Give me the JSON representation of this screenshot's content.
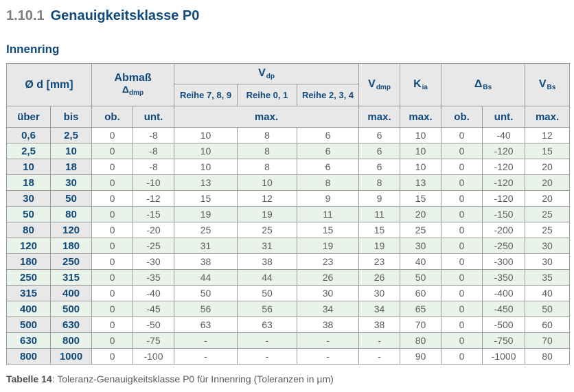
{
  "page": {
    "section_number": "1.10.1",
    "section_title": "Genauigkeitsklasse P0",
    "subtitle": "Innenring",
    "caption_label": "Tabelle 14",
    "caption_rest": ": Toleranz-Genauigkeitsklasse P0 für Innenring (Toleranzen in µm)"
  },
  "colors": {
    "accent_blue": "#10497c",
    "section_number_gray": "#7f7f7f",
    "header_bg": "#e8e8e8",
    "row_alt_green": "#eaf3ea",
    "border_gray": "#9b9b9b",
    "value_text_gray": "#5c5c5c"
  },
  "table": {
    "header": {
      "col_d": "Ø d  [mm]",
      "col_abmass": {
        "line1": "Abmaß",
        "symbol": "Δ",
        "sub": "dmp"
      },
      "col_vdp": {
        "symbol": "V",
        "sub": "dp"
      },
      "reihe": [
        "Reihe 7, 8, 9",
        "Reihe 0, 1",
        "Reihe 2, 3, 4"
      ],
      "col_vdmp": {
        "symbol": "V",
        "sub": "dmp"
      },
      "col_kia": {
        "symbol": "K",
        "sub": "ia"
      },
      "col_dbs": {
        "symbol": "Δ",
        "sub": "Bs"
      },
      "col_vbs": {
        "symbol": "V",
        "sub": "Bs"
      },
      "sub_labels": [
        "über",
        "bis",
        "ob.",
        "unt.",
        "max.",
        "max.",
        "max.",
        "ob.",
        "unt.",
        "max."
      ]
    },
    "rows": [
      [
        "0,6",
        "2,5",
        "0",
        "-8",
        "10",
        "8",
        "6",
        "6",
        "10",
        "0",
        "-40",
        "12"
      ],
      [
        "2,5",
        "10",
        "0",
        "-8",
        "10",
        "8",
        "6",
        "6",
        "10",
        "0",
        "-120",
        "15"
      ],
      [
        "10",
        "18",
        "0",
        "-8",
        "10",
        "8",
        "6",
        "6",
        "10",
        "0",
        "-120",
        "20"
      ],
      [
        "18",
        "30",
        "0",
        "-10",
        "13",
        "10",
        "8",
        "8",
        "13",
        "0",
        "-120",
        "20"
      ],
      [
        "30",
        "50",
        "0",
        "-12",
        "15",
        "12",
        "9",
        "9",
        "15",
        "0",
        "-120",
        "20"
      ],
      [
        "50",
        "80",
        "0",
        "-15",
        "19",
        "19",
        "11",
        "11",
        "20",
        "0",
        "-150",
        "25"
      ],
      [
        "80",
        "120",
        "0",
        "-20",
        "25",
        "25",
        "15",
        "15",
        "25",
        "0",
        "-200",
        "25"
      ],
      [
        "120",
        "180",
        "0",
        "-25",
        "31",
        "31",
        "19",
        "19",
        "30",
        "0",
        "-250",
        "30"
      ],
      [
        "180",
        "250",
        "0",
        "-30",
        "38",
        "38",
        "23",
        "23",
        "40",
        "0",
        "-300",
        "30"
      ],
      [
        "250",
        "315",
        "0",
        "-35",
        "44",
        "44",
        "26",
        "26",
        "50",
        "0",
        "-350",
        "35"
      ],
      [
        "315",
        "400",
        "0",
        "-40",
        "50",
        "50",
        "30",
        "30",
        "60",
        "0",
        "-400",
        "40"
      ],
      [
        "400",
        "500",
        "0",
        "-45",
        "56",
        "56",
        "34",
        "34",
        "65",
        "0",
        "-450",
        "50"
      ],
      [
        "500",
        "630",
        "0",
        "-50",
        "63",
        "63",
        "38",
        "38",
        "70",
        "0",
        "-500",
        "60"
      ],
      [
        "630",
        "800",
        "0",
        "-75",
        "-",
        "-",
        "-",
        "-",
        "80",
        "0",
        "-750",
        "70"
      ],
      [
        "800",
        "1000",
        "0",
        "-100",
        "-",
        "-",
        "-",
        "-",
        "90",
        "0",
        "-1000",
        "80"
      ]
    ]
  }
}
